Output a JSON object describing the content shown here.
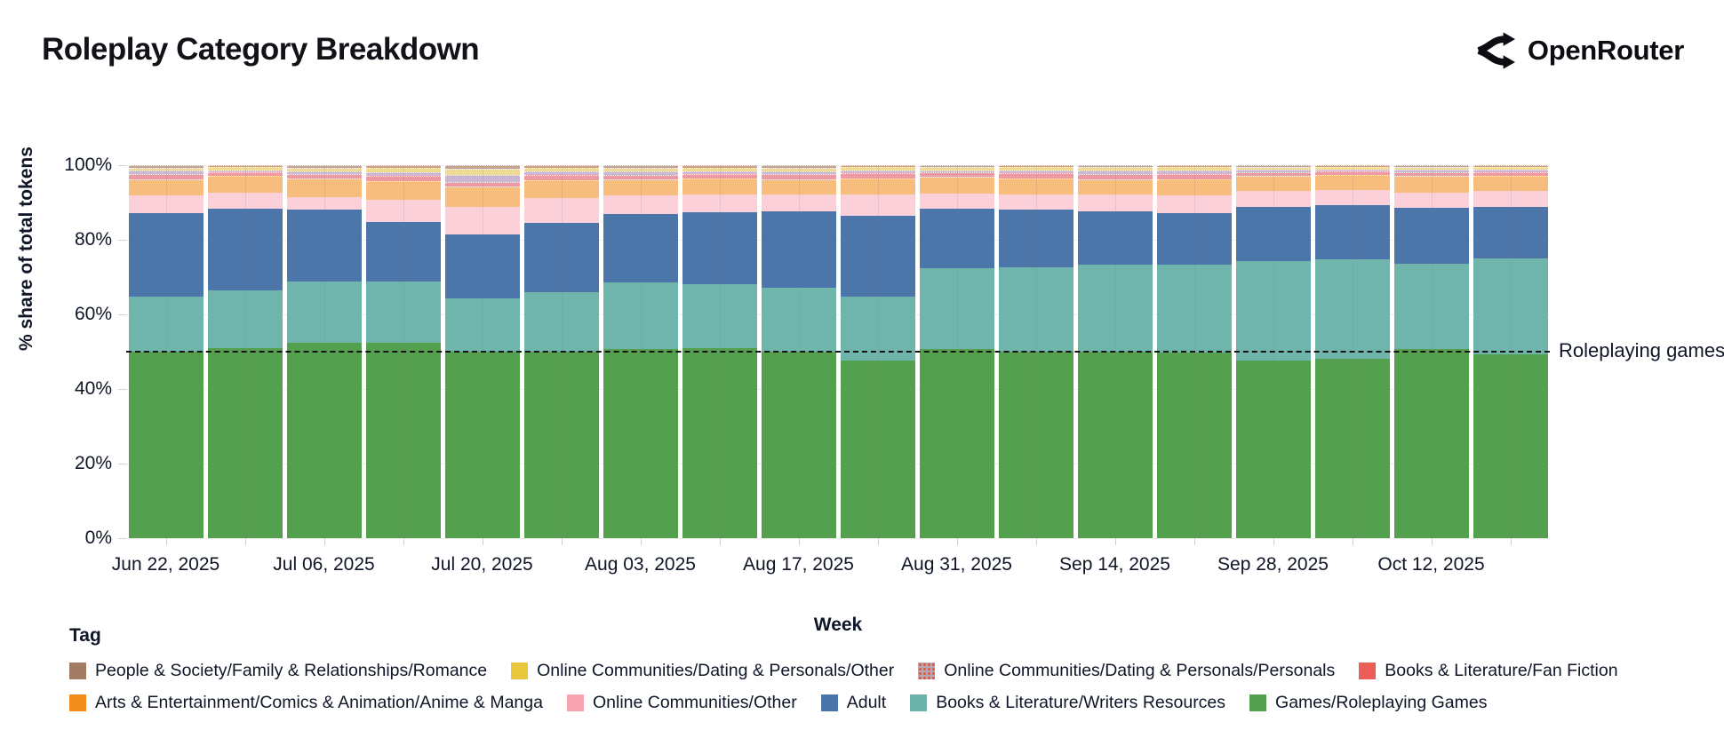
{
  "header": {
    "title": "Roleplay Category Breakdown",
    "brand": "OpenRouter"
  },
  "chart_data": {
    "type": "bar",
    "variant": "stacked-percent",
    "title": "Roleplay Category Breakdown",
    "xlabel": "Week",
    "ylabel": "% share of total tokens",
    "ylim": [
      0,
      100
    ],
    "y_tick_labels": [
      "0%",
      "20%",
      "40%",
      "60%",
      "80%",
      "100%"
    ],
    "grid": "horizontal-faint",
    "x_tick_labels_shown": [
      "Jun 22, 2025",
      "Jul 06, 2025",
      "Jul 20, 2025",
      "Aug 03, 2025",
      "Aug 17, 2025",
      "Aug 31, 2025",
      "Sep 14, 2025",
      "Sep 28, 2025",
      "Oct 12, 2025"
    ],
    "categories": [
      "Jun 22, 2025",
      "Jun 29, 2025",
      "Jul 06, 2025",
      "Jul 13, 2025",
      "Jul 20, 2025",
      "Jul 27, 2025",
      "Aug 03, 2025",
      "Aug 10, 2025",
      "Aug 17, 2025",
      "Aug 24, 2025",
      "Aug 31, 2025",
      "Sep 07, 2025",
      "Sep 14, 2025",
      "Sep 21, 2025",
      "Sep 28, 2025",
      "Oct 05, 2025",
      "Oct 12, 2025",
      "Oct 19, 2025"
    ],
    "series_stacking": "bottom-to-top",
    "series": [
      {
        "name": "Games/Roleplaying Games",
        "color": "#55a04e",
        "legend_color": "#55a04e",
        "values": [
          50.0,
          50.9,
          52.4,
          52.4,
          50.0,
          50.0,
          50.6,
          50.9,
          50.0,
          47.6,
          50.6,
          50.0,
          50.0,
          49.7,
          47.6,
          48.2,
          50.6,
          49.4
        ]
      },
      {
        "name": "Books & Literature/Writers Resources",
        "color": "#70b5ac",
        "legend_color": "#6cb3a9",
        "values": [
          14.7,
          15.6,
          16.4,
          16.4,
          14.4,
          15.9,
          18.0,
          17.1,
          17.1,
          17.1,
          21.8,
          22.7,
          23.3,
          23.6,
          26.6,
          26.5,
          23.0,
          25.6
        ]
      },
      {
        "name": "Adult",
        "color": "#4c75a9",
        "legend_color": "#4a73a8",
        "values": [
          22.4,
          21.8,
          19.2,
          16.0,
          17.1,
          18.6,
          18.2,
          19.4,
          20.6,
          21.8,
          15.9,
          15.3,
          14.4,
          13.8,
          14.7,
          14.5,
          15.0,
          13.9
        ]
      },
      {
        "name": "Online Communities/Other",
        "color": "#fcd0d9",
        "legend_color": "#f9a2b0",
        "values": [
          4.7,
          4.4,
          3.5,
          5.9,
          7.4,
          6.7,
          5.0,
          4.7,
          4.4,
          5.6,
          4.1,
          4.1,
          4.4,
          4.7,
          4.1,
          4.1,
          4.1,
          4.1
        ]
      },
      {
        "name": "Arts & Entertainment/Comics & Animation/Anime & Manga",
        "color": "#f7bd7c",
        "legend_color": "#f28c1b",
        "values": [
          4.4,
          4.4,
          5.0,
          5.0,
          5.3,
          4.7,
          4.4,
          4.4,
          4.1,
          4.4,
          4.4,
          4.4,
          4.1,
          4.4,
          4.1,
          4.1,
          4.4,
          4.1
        ]
      },
      {
        "name": "Books & Literature/Fan Fiction",
        "color": "#ee9aa2",
        "legend_color": "#ea5e57",
        "values": [
          1.5,
          1.0,
          1.1,
          1.5,
          1.2,
          1.4,
          1.3,
          1.2,
          1.4,
          1.4,
          1.2,
          1.4,
          1.5,
          1.4,
          1.1,
          0.9,
          1.1,
          1.1
        ]
      },
      {
        "name": "Online Communities/Dating & Personals/Personals",
        "color": "#ccb7d2",
        "legend_color": "#b5a7b3",
        "legend_pattern": "red-dots",
        "values": [
          0.8,
          0.6,
          0.7,
          1.0,
          2.1,
          1.1,
          0.8,
          0.7,
          0.8,
          0.7,
          0.7,
          0.7,
          0.8,
          0.9,
          0.7,
          0.6,
          0.7,
          0.7
        ]
      },
      {
        "name": "Online Communities/Dating & Personals/Other",
        "color": "#f1db92",
        "legend_color": "#e9c83d",
        "values": [
          0.9,
          0.8,
          1.1,
          1.1,
          1.6,
          1.0,
          1.1,
          1.0,
          1.0,
          0.9,
          0.8,
          0.9,
          1.0,
          1.0,
          0.7,
          0.7,
          0.7,
          0.7
        ]
      },
      {
        "name": "People & Society/Family & Relationships/Romance",
        "color": "#c5a292",
        "legend_color": "#a17b64",
        "values": [
          0.6,
          0.5,
          0.6,
          0.7,
          0.9,
          0.6,
          0.6,
          0.6,
          0.6,
          0.5,
          0.5,
          0.5,
          0.5,
          0.5,
          0.4,
          0.4,
          0.4,
          0.4
        ]
      }
    ],
    "annotation": {
      "text": "Roleplaying games",
      "y_percent": 50,
      "line_style": "dashed",
      "line_color": "#141414"
    },
    "legend_position": "bottom-left"
  },
  "legend": {
    "title": "Tag",
    "items": [
      {
        "label": "People & Society/Family & Relationships/Romance",
        "color": "#a17b64"
      },
      {
        "label": "Online Communities/Dating & Personals/Other",
        "color": "#e9c83d"
      },
      {
        "label": "Online Communities/Dating & Personals/Personals",
        "color": "#b5a7b3",
        "pattern": "red-dots"
      },
      {
        "label": "Books & Literature/Fan Fiction",
        "color": "#ea5e57"
      },
      {
        "label": "Arts & Entertainment/Comics & Animation/Anime & Manga",
        "color": "#f28c1b"
      },
      {
        "label": "Online Communities/Other",
        "color": "#f9a2b0"
      },
      {
        "label": "Adult",
        "color": "#4a73a8"
      },
      {
        "label": "Books & Literature/Writers Resources",
        "color": "#6cb3a9"
      },
      {
        "label": "Games/Roleplaying Games",
        "color": "#55a04e"
      }
    ]
  }
}
